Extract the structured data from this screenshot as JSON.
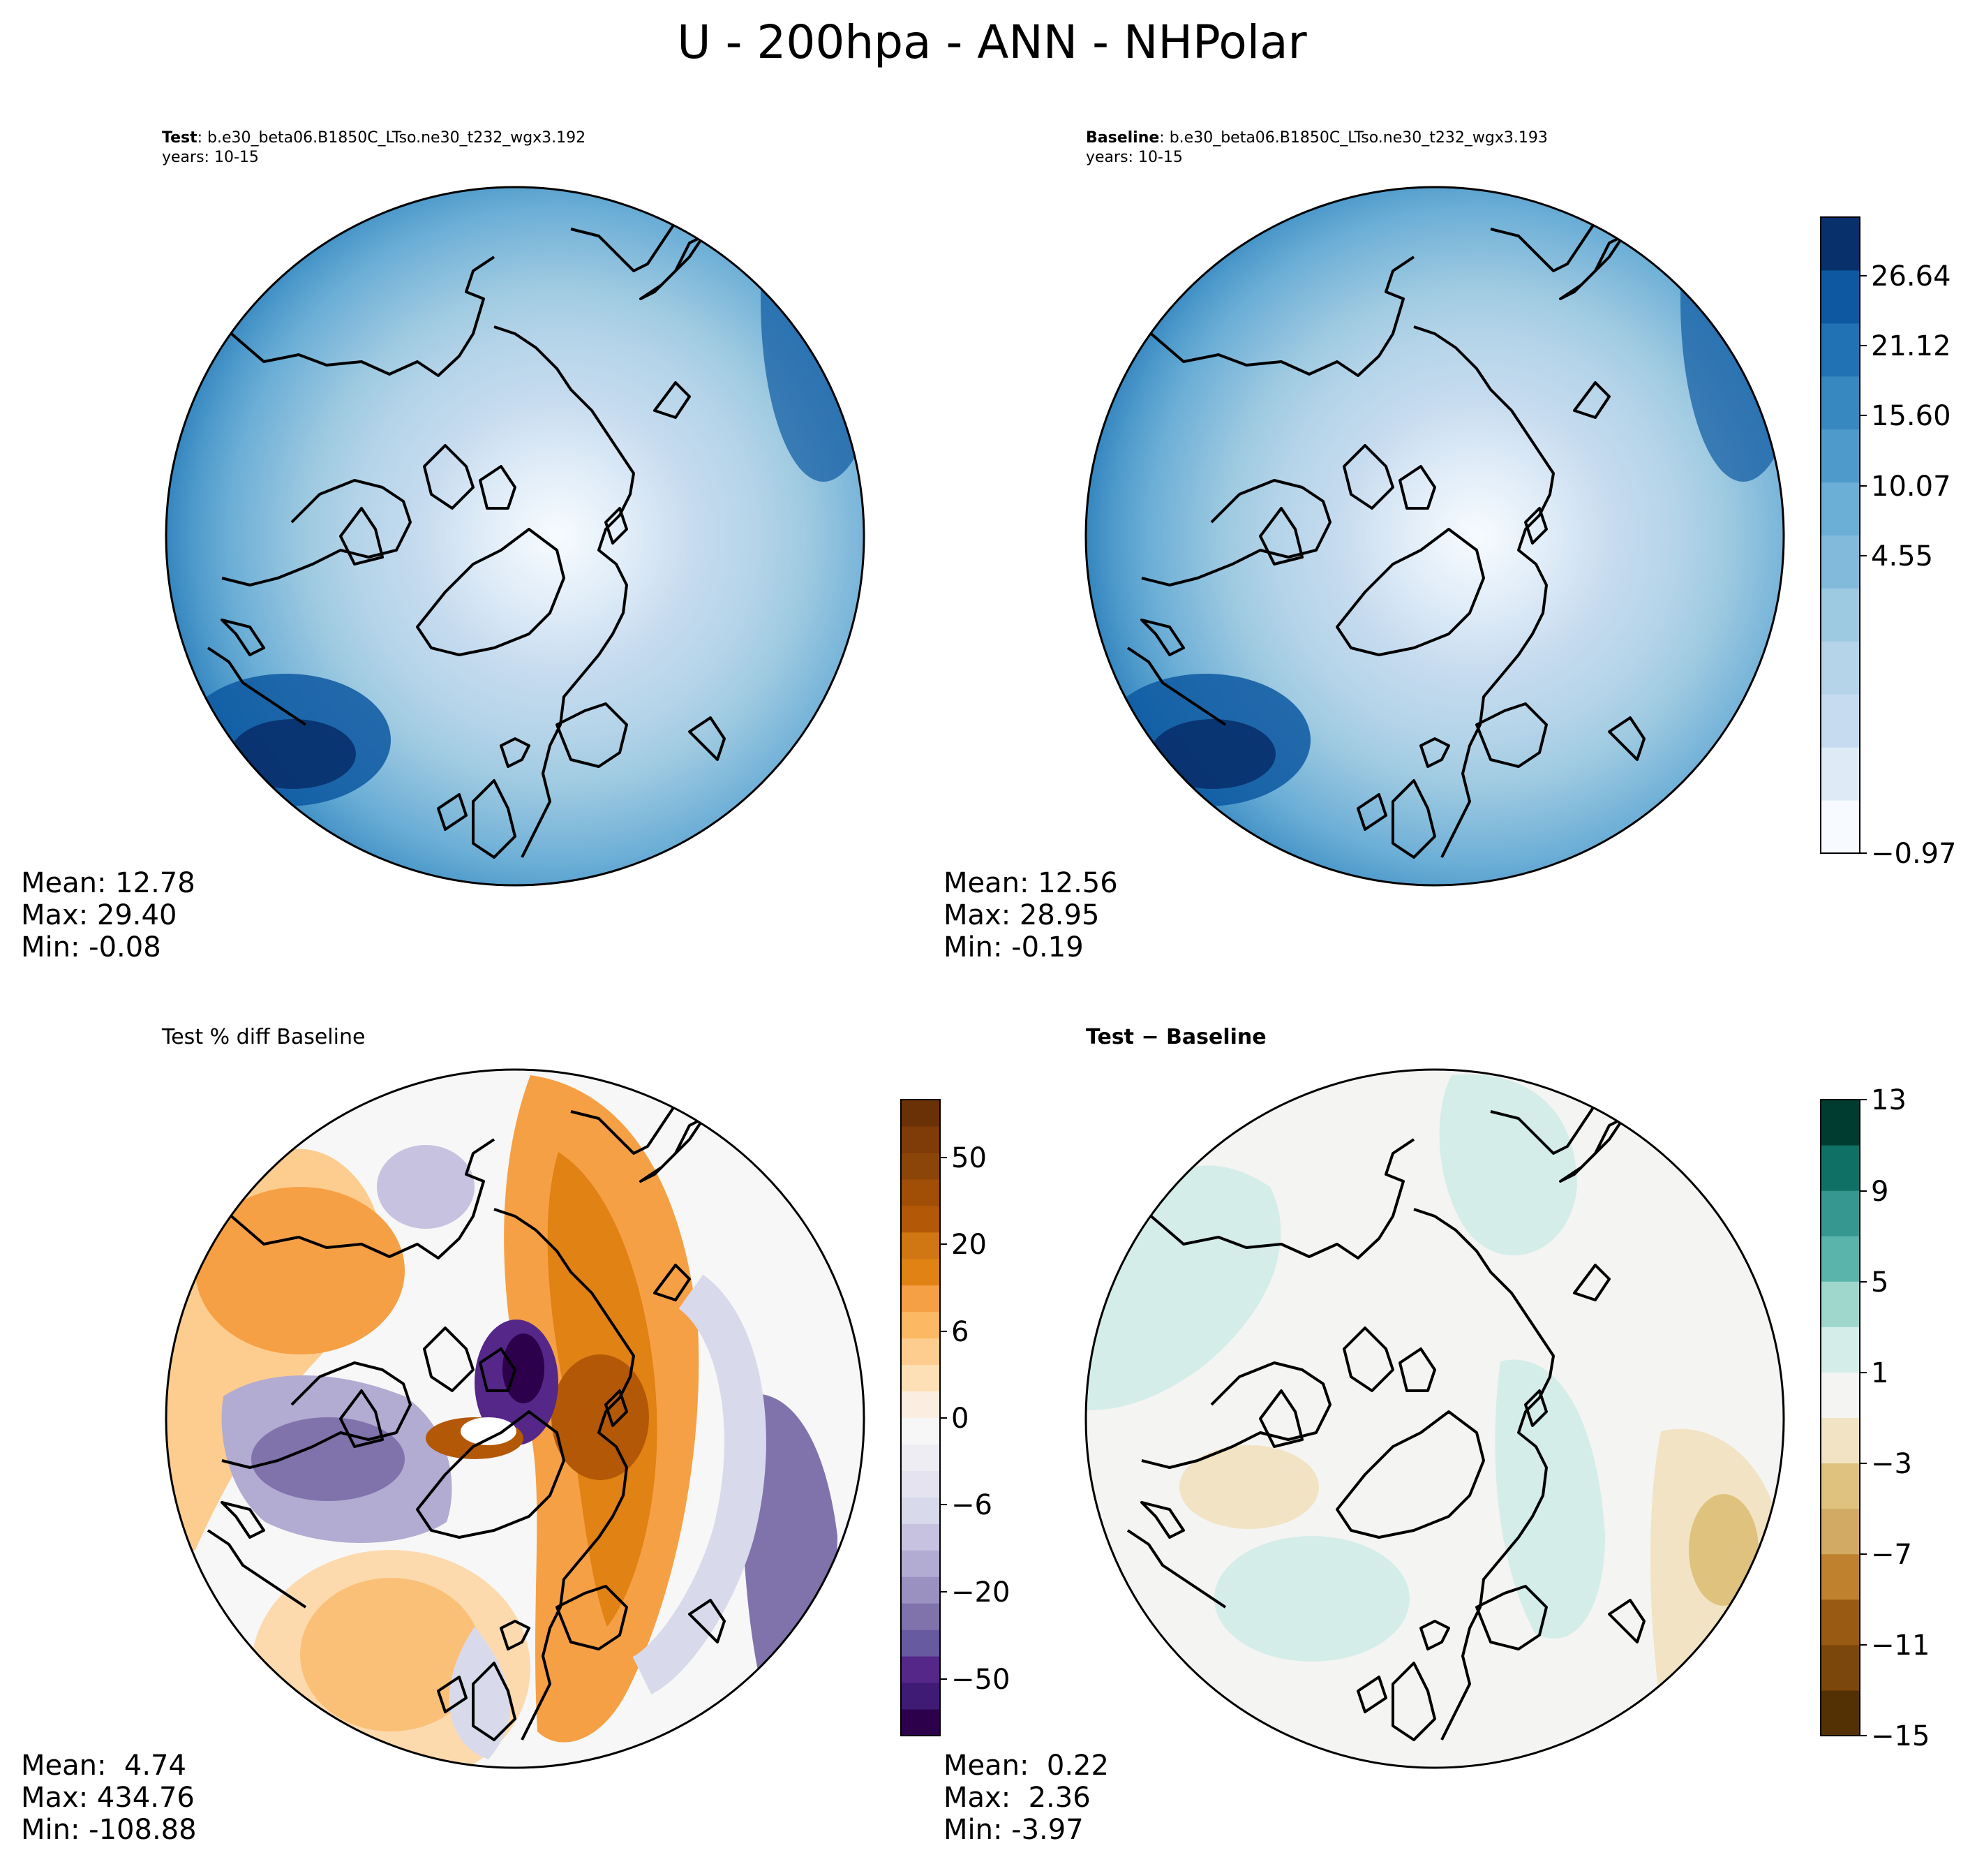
{
  "figure": {
    "title": "U - 200hpa - ANN - NHPolar"
  },
  "panels": {
    "test": {
      "label": "Test",
      "case": ": b.e30_beta06.B1850C_LTso.ne30_t232_wgx3.192",
      "years": "years: 10-15",
      "stats": {
        "mean": "Mean: 12.78",
        "max": "Max: 29.40",
        "min": "Min: -0.08"
      }
    },
    "baseline": {
      "label": "Baseline",
      "case": ": b.e30_beta06.B1850C_LTso.ne30_t232_wgx3.193",
      "years": "years: 10-15",
      "stats": {
        "mean": "Mean: 12.56",
        "max": "Max: 28.95",
        "min": "Min: -0.19"
      }
    },
    "pctdiff": {
      "title": "Test % diff Baseline",
      "stats": {
        "mean": "Mean:  4.74",
        "max": "Max: 434.76",
        "min": "Min: -108.88"
      }
    },
    "diff": {
      "title": "Test − Baseline",
      "stats": {
        "mean": "Mean:  0.22",
        "max": "Max:  2.36",
        "min": "Min: -3.97"
      }
    }
  },
  "chart_data": [
    {
      "type": "heatmap",
      "name": "test",
      "projection": "North Polar Stereographic",
      "variable": "U",
      "level": "200hpa",
      "colormap": "Blues",
      "mean": 12.78,
      "max": 29.4,
      "min": -0.08
    },
    {
      "type": "heatmap",
      "name": "baseline",
      "projection": "North Polar Stereographic",
      "colormap": "Blues",
      "mean": 12.56,
      "max": 28.95,
      "min": -0.19,
      "colorbar": {
        "ticks": [
          "26.64",
          "21.12",
          "15.60",
          "10.07",
          "4.55",
          "−0.97"
        ],
        "tick_values": [
          26.64,
          21.12,
          15.6,
          10.07,
          4.55,
          -0.97
        ],
        "range": [
          -0.97,
          29.4
        ],
        "colors": [
          "#f7fbff",
          "#deebf7",
          "#c6dbef",
          "#b5d4e9",
          "#9ecae1",
          "#82badb",
          "#6baed6",
          "#4e9acb",
          "#3787c0",
          "#2171b5",
          "#0d58a1",
          "#08306b"
        ]
      }
    },
    {
      "type": "heatmap",
      "name": "pct_diff",
      "projection": "North Polar Stereographic",
      "colormap": "PuOr_r",
      "mean": 4.74,
      "max": 434.76,
      "min": -108.88,
      "colorbar": {
        "ticks": [
          "50",
          "20",
          "6",
          "0",
          "−6",
          "−20",
          "−50"
        ],
        "tick_values": [
          50,
          20,
          6,
          0,
          -6,
          -20,
          -50
        ],
        "levels": [
          -100,
          -70,
          -50,
          -40,
          -30,
          -20,
          -15,
          -10,
          -8,
          -6,
          -4,
          -2,
          0,
          2,
          4,
          6,
          8,
          10,
          15,
          20,
          30,
          40,
          50,
          70,
          100
        ],
        "colors": [
          "#2d004b",
          "#3f1b75",
          "#542788",
          "#685aa0",
          "#8073ac",
          "#9a91c0",
          "#b2abd2",
          "#c6c2df",
          "#d8daeb",
          "#e4e3ef",
          "#eeedf3",
          "#f7f7f7",
          "#fbeee0",
          "#fee0b6",
          "#fdcd8f",
          "#fdb863",
          "#f6a045",
          "#e08214",
          "#d07612",
          "#b35806",
          "#a14e07",
          "#8b4508",
          "#7f3b08",
          "#6b3106"
        ]
      }
    },
    {
      "type": "heatmap",
      "name": "diff",
      "projection": "North Polar Stereographic",
      "colormap": "BrBG",
      "mean": 0.22,
      "max": 2.36,
      "min": -3.97,
      "colorbar": {
        "ticks": [
          "13",
          "9",
          "5",
          "1",
          "−3",
          "−7",
          "−11",
          "−15"
        ],
        "tick_values": [
          13,
          9,
          5,
          1,
          -3,
          -7,
          -11,
          -15
        ],
        "levels": [
          -15,
          -13,
          -11,
          -9,
          -7,
          -5,
          -3,
          -1,
          1,
          3,
          5,
          7,
          9,
          11,
          13
        ],
        "colors": [
          "#543005",
          "#7c470a",
          "#995b14",
          "#bf812d",
          "#d2aa64",
          "#dfc27d",
          "#f1e3c3",
          "#f4f4f2",
          "#d4ede8",
          "#9fd7cc",
          "#5ab4ac",
          "#35978f",
          "#0f7065",
          "#003c30"
        ]
      }
    }
  ]
}
